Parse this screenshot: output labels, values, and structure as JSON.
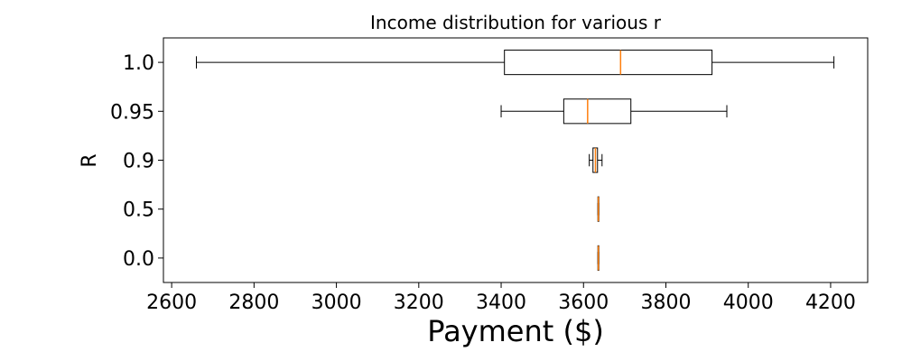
{
  "chart_data": {
    "type": "boxplot",
    "orientation": "horizontal",
    "title": "Income distribution for various r",
    "xlabel": "Payment ($)",
    "ylabel": "R",
    "xlim": [
      2580,
      4290
    ],
    "xticks": [
      2600,
      2800,
      3000,
      3200,
      3400,
      3600,
      3800,
      4000,
      4200
    ],
    "categories": [
      "0.0",
      "0.5",
      "0.9",
      "0.95",
      "1.0"
    ],
    "boxes": [
      {
        "label": "0.0",
        "whisker_low": 3635,
        "q1": 3635,
        "median": 3636,
        "q3": 3637,
        "whisker_high": 3637
      },
      {
        "label": "0.5",
        "whisker_low": 3635,
        "q1": 3635,
        "median": 3636,
        "q3": 3637,
        "whisker_high": 3637
      },
      {
        "label": "0.9",
        "whisker_low": 3614,
        "q1": 3623,
        "median": 3629,
        "q3": 3634,
        "whisker_high": 3645
      },
      {
        "label": "0.95",
        "whisker_low": 3400,
        "q1": 3552,
        "median": 3610,
        "q3": 3715,
        "whisker_high": 3948
      },
      {
        "label": "1.0",
        "whisker_low": 2660,
        "q1": 3408,
        "median": 3690,
        "q3": 3912,
        "whisker_high": 4208
      }
    ],
    "colors": {
      "box": "#000000",
      "median": "#ff7f0e",
      "background": "#ffffff"
    },
    "grid": false,
    "legend": "none"
  }
}
